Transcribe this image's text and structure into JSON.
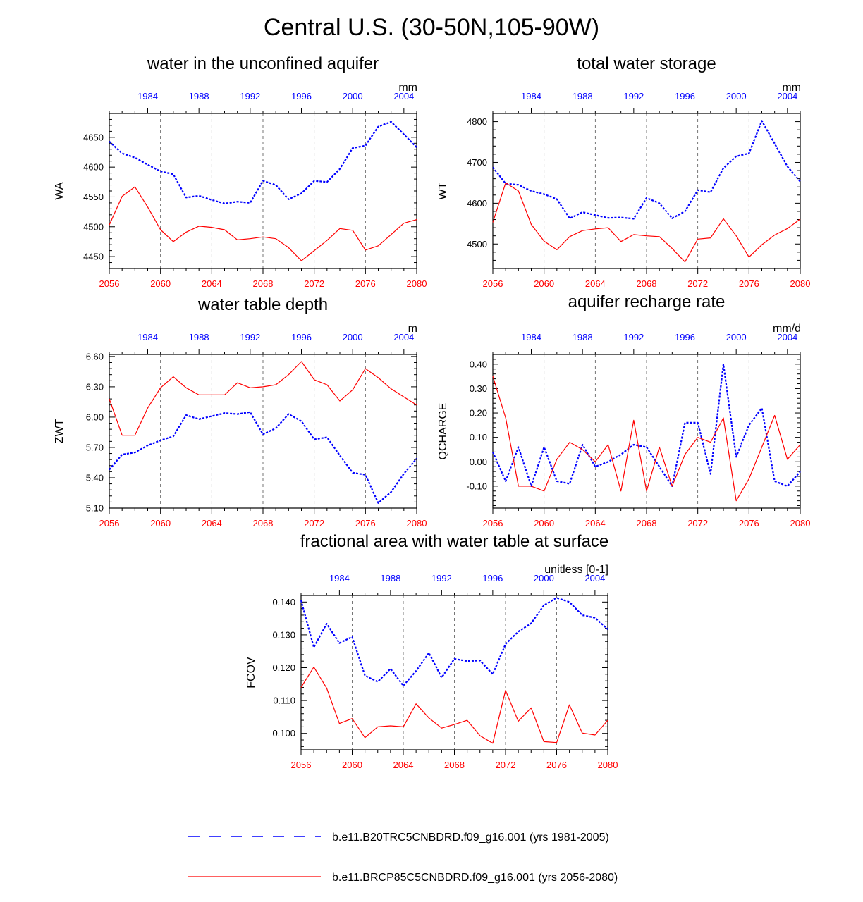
{
  "title": "Central U.S. (30-50N,105-90W)",
  "legend": [
    {
      "label": "b.e11.B20TRC5CNBDRD.f09_g16.001 (yrs 1981-2005)",
      "color": "#0000ff",
      "style": "dashed"
    },
    {
      "label": "b.e11.BRCP85C5CNBDRD.f09_g16.001 (yrs 2056-2080)",
      "color": "#ff0000",
      "style": "solid"
    }
  ],
  "chart_data": [
    {
      "type": "line",
      "title": "water in the unconfined aquifer",
      "units": "mm",
      "ylabel": "WA",
      "ylim": [
        4430,
        4690
      ],
      "yticks": [
        4450,
        4500,
        4550,
        4600,
        4650
      ],
      "ytick_labels": [
        "4450",
        "4500",
        "4550",
        "4600",
        "4650"
      ],
      "x_bottom": {
        "range": [
          2056,
          2080
        ],
        "tick_labels": [
          "2056",
          "2060",
          "2064",
          "2068",
          "2072",
          "2076",
          "2080"
        ]
      },
      "x_top": {
        "range": [
          1981,
          2005
        ],
        "tick_labels": [
          "1984",
          "1988",
          "1992",
          "1996",
          "2000",
          "2004"
        ]
      },
      "series": [
        {
          "color": "#0000ff",
          "style": "dashed",
          "axis": "top",
          "x_start": 1981,
          "values": [
            4643,
            4623,
            4616,
            4604,
            4593,
            4588,
            4549,
            4552,
            4545,
            4539,
            4542,
            4540,
            4577,
            4570,
            4546,
            4556,
            4577,
            4575,
            4597,
            4632,
            4636,
            4668,
            4676,
            4655,
            4633
          ]
        },
        {
          "color": "#ff0000",
          "style": "solid",
          "axis": "bottom",
          "x_start": 2056,
          "values": [
            4503,
            4551,
            4567,
            4533,
            4495,
            4475,
            4491,
            4501,
            4499,
            4495,
            4478,
            4480,
            4483,
            4480,
            4465,
            4443,
            4460,
            4477,
            4497,
            4494,
            4461,
            4468,
            4487,
            4506,
            4512
          ]
        }
      ]
    },
    {
      "type": "line",
      "title": "total water storage",
      "units": "mm",
      "ylabel": "WT",
      "ylim": [
        4440,
        4820
      ],
      "yticks": [
        4500,
        4600,
        4700,
        4800
      ],
      "ytick_labels": [
        "4500",
        "4600",
        "4700",
        "4800"
      ],
      "x_bottom": {
        "range": [
          2056,
          2080
        ],
        "tick_labels": [
          "2056",
          "2060",
          "2064",
          "2068",
          "2072",
          "2076",
          "2080"
        ]
      },
      "x_top": {
        "range": [
          1981,
          2005
        ],
        "tick_labels": [
          "1984",
          "1988",
          "1992",
          "1996",
          "2000",
          "2004"
        ]
      },
      "series": [
        {
          "color": "#0000ff",
          "style": "dashed",
          "axis": "top",
          "x_start": 1981,
          "values": [
            4688,
            4648,
            4645,
            4630,
            4622,
            4610,
            4563,
            4578,
            4571,
            4564,
            4565,
            4562,
            4613,
            4600,
            4563,
            4580,
            4632,
            4627,
            4686,
            4715,
            4722,
            4802,
            4746,
            4690,
            4653
          ]
        },
        {
          "color": "#ff0000",
          "style": "solid",
          "axis": "bottom",
          "x_start": 2056,
          "values": [
            4553,
            4650,
            4630,
            4548,
            4507,
            4486,
            4518,
            4533,
            4537,
            4540,
            4506,
            4523,
            4520,
            4518,
            4489,
            4456,
            4512,
            4515,
            4562,
            4520,
            4468,
            4498,
            4522,
            4538,
            4561
          ]
        }
      ]
    },
    {
      "type": "line",
      "title": "water table depth",
      "units": "m",
      "ylabel": "ZWT",
      "ylim": [
        5.1,
        6.62
      ],
      "yticks": [
        5.1,
        5.4,
        5.7,
        6.0,
        6.3,
        6.6
      ],
      "ytick_labels": [
        "5.10",
        "5.40",
        "5.70",
        "6.00",
        "6.30",
        "6.60"
      ],
      "x_bottom": {
        "range": [
          2056,
          2080
        ],
        "tick_labels": [
          "2056",
          "2060",
          "2064",
          "2068",
          "2072",
          "2076",
          "2080"
        ]
      },
      "x_top": {
        "range": [
          1981,
          2005
        ],
        "tick_labels": [
          "1984",
          "1988",
          "1992",
          "1996",
          "2000",
          "2004"
        ]
      },
      "series": [
        {
          "color": "#0000ff",
          "style": "dashed",
          "axis": "top",
          "x_start": 1981,
          "values": [
            5.48,
            5.63,
            5.65,
            5.72,
            5.77,
            5.81,
            6.02,
            5.98,
            6.01,
            6.04,
            6.03,
            6.05,
            5.83,
            5.89,
            6.03,
            5.96,
            5.78,
            5.8,
            5.62,
            5.45,
            5.43,
            5.15,
            5.26,
            5.44,
            5.59
          ]
        },
        {
          "color": "#ff0000",
          "style": "solid",
          "axis": "bottom",
          "x_start": 2056,
          "values": [
            6.18,
            5.82,
            5.82,
            6.09,
            6.29,
            6.4,
            6.29,
            6.22,
            6.22,
            6.22,
            6.34,
            6.29,
            6.3,
            6.32,
            6.42,
            6.55,
            6.37,
            6.32,
            6.16,
            6.27,
            6.48,
            6.39,
            6.28,
            6.2,
            6.12
          ]
        }
      ]
    },
    {
      "type": "line",
      "title": "aquifer recharge rate",
      "units": "mm/d",
      "ylabel": "QCHARGE",
      "ylim": [
        -0.19,
        0.44
      ],
      "yticks": [
        -0.1,
        0.0,
        0.1,
        0.2,
        0.3,
        0.4
      ],
      "ytick_labels": [
        "-0.10",
        "0.00",
        "0.10",
        "0.20",
        "0.30",
        "0.40"
      ],
      "x_bottom": {
        "range": [
          2056,
          2080
        ],
        "tick_labels": [
          "2056",
          "2060",
          "2064",
          "2068",
          "2072",
          "2076",
          "2080"
        ]
      },
      "x_top": {
        "range": [
          1981,
          2005
        ],
        "tick_labels": [
          "1984",
          "1988",
          "1992",
          "1996",
          "2000",
          "2004"
        ]
      },
      "series": [
        {
          "color": "#0000ff",
          "style": "dashed",
          "axis": "top",
          "x_start": 1981,
          "values": [
            0.04,
            -0.08,
            0.06,
            -0.1,
            0.06,
            -0.08,
            -0.09,
            0.07,
            -0.02,
            0.0,
            0.03,
            0.07,
            0.06,
            -0.02,
            -0.1,
            0.16,
            0.16,
            -0.05,
            0.4,
            0.02,
            0.15,
            0.22,
            -0.08,
            -0.1,
            -0.04
          ]
        },
        {
          "color": "#ff0000",
          "style": "solid",
          "axis": "bottom",
          "x_start": 2056,
          "values": [
            0.35,
            0.18,
            -0.1,
            -0.1,
            -0.12,
            0.01,
            0.08,
            0.05,
            0.0,
            0.07,
            -0.12,
            0.17,
            -0.12,
            0.06,
            -0.1,
            0.03,
            0.1,
            0.08,
            0.18,
            -0.16,
            -0.07,
            0.06,
            0.19,
            0.01,
            0.07
          ]
        }
      ]
    },
    {
      "type": "line",
      "title": "fractional area with water table at surface",
      "units": "unitless [0-1]",
      "ylabel": "FCOV",
      "ylim": [
        0.095,
        0.142
      ],
      "yticks": [
        0.1,
        0.11,
        0.12,
        0.13,
        0.14
      ],
      "ytick_labels": [
        "0.100",
        "0.110",
        "0.120",
        "0.130",
        "0.140"
      ],
      "x_bottom": {
        "range": [
          2056,
          2080
        ],
        "tick_labels": [
          "2056",
          "2060",
          "2064",
          "2068",
          "2072",
          "2076",
          "2080"
        ]
      },
      "x_top": {
        "range": [
          1981,
          2005
        ],
        "tick_labels": [
          "1984",
          "1988",
          "1992",
          "1996",
          "2000",
          "2004"
        ]
      },
      "series": [
        {
          "color": "#0000ff",
          "style": "dashed",
          "axis": "top",
          "x_start": 1981,
          "values": [
            0.1405,
            0.1262,
            0.1334,
            0.1275,
            0.1294,
            0.1176,
            0.1157,
            0.1197,
            0.1145,
            0.119,
            0.1245,
            0.117,
            0.1227,
            0.122,
            0.1222,
            0.118,
            0.1272,
            0.131,
            0.1335,
            0.139,
            0.1413,
            0.14,
            0.136,
            0.1352,
            0.1317
          ]
        },
        {
          "color": "#ff0000",
          "style": "solid",
          "axis": "bottom",
          "x_start": 2056,
          "values": [
            0.114,
            0.1202,
            0.1138,
            0.103,
            0.1045,
            0.0987,
            0.102,
            0.1023,
            0.102,
            0.109,
            0.1047,
            0.1016,
            0.1027,
            0.104,
            0.0993,
            0.097,
            0.1131,
            0.1037,
            0.1078,
            0.0975,
            0.0972,
            0.1087,
            0.1001,
            0.0995,
            0.104
          ]
        }
      ]
    }
  ]
}
